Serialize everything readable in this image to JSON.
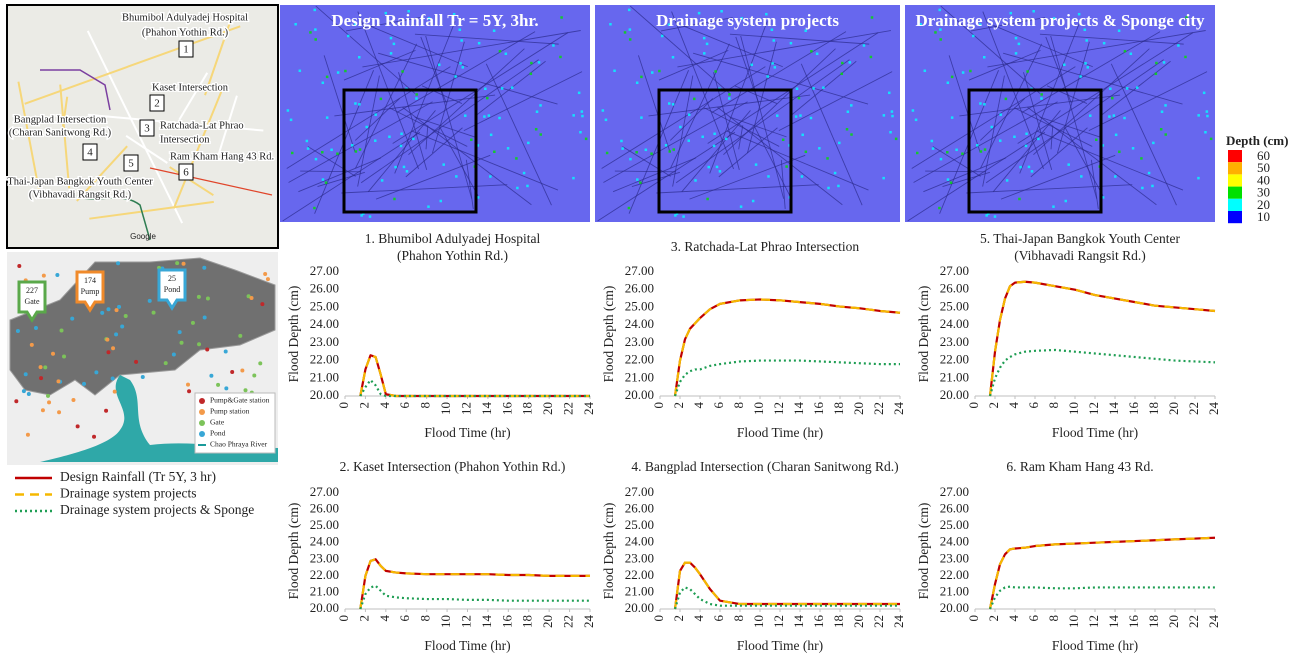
{
  "map": {
    "labels": [
      "Bhumibol Adulyadej Hospital",
      "(Phahon Yothin Rd.)",
      "Kaset Intersection",
      "Ratchada-Lat Phrao",
      "Intersection",
      "Bangplad Intersection",
      "(Charan Sanitwong Rd.)",
      "Ram Kham Hang 43 Rd.",
      "Thai-Japan Bangkok Youth Center",
      "(Vibhavadi Rangsit Rd.)"
    ],
    "markers": [
      "1",
      "2",
      "3",
      "4",
      "5",
      "6"
    ],
    "credit": "Google"
  },
  "facility_map": {
    "callouts": [
      {
        "count": 227,
        "label": "Gate",
        "color": "#5aa84a"
      },
      {
        "count": 174,
        "label": "Pump",
        "color": "#f08a2a"
      },
      {
        "count": 25,
        "label": "Pond",
        "color": "#38a7d6"
      }
    ],
    "legend": [
      {
        "label": "Pump&Gate station",
        "color": "#c0282a",
        "shape": "dot"
      },
      {
        "label": "Pump station",
        "color": "#f39a4a",
        "shape": "dot"
      },
      {
        "label": "Gate",
        "color": "#7cc35a",
        "shape": "dot"
      },
      {
        "label": "Pond",
        "color": "#38a7d6",
        "shape": "dot"
      },
      {
        "label": "Chao Phraya River",
        "color": "#1a9a9a",
        "shape": "line"
      }
    ]
  },
  "panels": [
    {
      "title": "Design Rainfall Tr = 5Y, 3hr."
    },
    {
      "title": "Drainage system projects"
    },
    {
      "title": "Drainage system projects & Sponge city"
    }
  ],
  "depth_legend": {
    "title": "Depth (cm)",
    "ticks": [
      60,
      50,
      40,
      30,
      20,
      10
    ],
    "colors": [
      "#ff0000",
      "#ffb000",
      "#ffff00",
      "#00e000",
      "#00ffff",
      "#0000ff"
    ]
  },
  "series_styles": [
    {
      "name": "Design Rainfall (Tr 5Y, 3 hr)",
      "color": "#c00000",
      "dash": "none"
    },
    {
      "name": "Drainage system projects",
      "color": "#f5b800",
      "dash": "9,6"
    },
    {
      "name": "Drainage system projects & Sponge",
      "color": "#1f9e54",
      "dash": "2,3"
    }
  ],
  "chart_data": [
    {
      "type": "line",
      "title": [
        "1.  Bhumibol Adulyadej Hospital",
        "(Phahon Yothin Rd.)"
      ],
      "x_label": "Flood Time (hr)",
      "y_label": "Flood Depth (cm)",
      "xlim": [
        0,
        24
      ],
      "xticks": [
        0,
        2,
        4,
        6,
        8,
        10,
        12,
        14,
        16,
        18,
        20,
        22,
        24
      ],
      "ylim": [
        20,
        27
      ],
      "yticks": [
        {
          "value": 20,
          "label": "20.00"
        },
        {
          "value": 21,
          "label": "21.00"
        },
        {
          "value": 22,
          "label": "22.00"
        },
        {
          "value": 23,
          "label": "23.00"
        },
        {
          "value": 24,
          "label": "24.00"
        },
        {
          "value": 25,
          "label": "25.00"
        },
        {
          "value": 26,
          "label": "26.00"
        },
        {
          "value": 27,
          "label": "27.00"
        }
      ],
      "x": [
        1.5,
        2,
        2.5,
        3,
        3.5,
        4,
        5,
        6,
        8,
        10,
        12,
        14,
        16,
        18,
        20,
        22,
        24
      ],
      "series": [
        {
          "values": [
            20,
            21.5,
            22.3,
            22.2,
            21.2,
            20.1,
            20,
            20,
            20,
            20,
            20,
            20,
            20,
            20,
            20,
            20,
            20
          ]
        },
        {
          "values": [
            20,
            21.5,
            22.3,
            22.2,
            21.2,
            20.1,
            20,
            20,
            20,
            20,
            20,
            20,
            20,
            20,
            20,
            20,
            20
          ]
        },
        {
          "values": [
            20,
            20.5,
            20.9,
            20.6,
            20.1,
            20,
            20,
            20,
            20,
            20,
            20,
            20,
            20,
            20,
            20,
            20,
            20
          ]
        }
      ]
    },
    {
      "type": "line",
      "title": [
        "2. Kaset Intersection (Phahon Yothin Rd.)"
      ],
      "x_label": "Flood Time (hr)",
      "y_label": "Flood Depth (cm)",
      "xlim": [
        0,
        24
      ],
      "xticks": [
        0,
        2,
        4,
        6,
        8,
        10,
        12,
        14,
        16,
        18,
        20,
        22,
        24
      ],
      "ylim": [
        20,
        27
      ],
      "yticks": [
        {
          "value": 20,
          "label": "20.00"
        },
        {
          "value": 21,
          "label": "21.00"
        },
        {
          "value": 22,
          "label": "22.00"
        },
        {
          "value": 23,
          "label": "23.00"
        },
        {
          "value": 24,
          "label": "24.00"
        },
        {
          "value": 25,
          "label": "25.00"
        },
        {
          "value": 26,
          "label": "26.00"
        },
        {
          "value": 27,
          "label": "27.00"
        }
      ],
      "x": [
        1.5,
        2,
        2.5,
        3,
        3.5,
        4,
        5,
        6,
        8,
        10,
        12,
        14,
        16,
        18,
        20,
        22,
        24
      ],
      "series": [
        {
          "values": [
            20,
            22,
            22.9,
            23,
            22.6,
            22.3,
            22.2,
            22.15,
            22.1,
            22.1,
            22.1,
            22.1,
            22.05,
            22.05,
            22,
            22,
            22
          ]
        },
        {
          "values": [
            20,
            22,
            22.9,
            23,
            22.6,
            22.3,
            22.2,
            22.15,
            22.1,
            22.1,
            22.1,
            22.1,
            22.05,
            22.05,
            22,
            22,
            22
          ]
        },
        {
          "values": [
            20,
            20.9,
            21.3,
            21.4,
            21.1,
            20.8,
            20.7,
            20.65,
            20.6,
            20.6,
            20.55,
            20.55,
            20.5,
            20.5,
            20.5,
            20.5,
            20.5
          ]
        }
      ]
    },
    {
      "type": "line",
      "title": [
        "3. Ratchada-Lat Phrao Intersection"
      ],
      "x_label": "Flood Time (hr)",
      "y_label": "Flood Depth (cm)",
      "xlim": [
        0,
        24
      ],
      "xticks": [
        0,
        2,
        4,
        6,
        8,
        10,
        12,
        14,
        16,
        18,
        20,
        22,
        24
      ],
      "ylim": [
        20,
        27
      ],
      "yticks": [
        {
          "value": 20,
          "label": "20.00"
        },
        {
          "value": 21,
          "label": "21.00"
        },
        {
          "value": 22,
          "label": "22.00"
        },
        {
          "value": 23,
          "label": "23.00"
        },
        {
          "value": 24,
          "label": "24.00"
        },
        {
          "value": 25,
          "label": "25.00"
        },
        {
          "value": 26,
          "label": "26.00"
        },
        {
          "value": 27,
          "label": "27.00"
        }
      ],
      "x": [
        1.5,
        2,
        2.5,
        3,
        3.5,
        4,
        5,
        6,
        8,
        10,
        12,
        14,
        16,
        18,
        20,
        22,
        24
      ],
      "series": [
        {
          "values": [
            20,
            22,
            23.2,
            23.8,
            24.1,
            24.4,
            24.9,
            25.2,
            25.4,
            25.45,
            25.4,
            25.3,
            25.2,
            25.05,
            24.95,
            24.8,
            24.7
          ]
        },
        {
          "values": [
            20,
            22,
            23.2,
            23.8,
            24.1,
            24.4,
            24.9,
            25.2,
            25.4,
            25.45,
            25.4,
            25.3,
            25.2,
            25.05,
            24.95,
            24.8,
            24.7
          ]
        },
        {
          "values": [
            20,
            20.8,
            21.2,
            21.4,
            21.5,
            21.5,
            21.7,
            21.8,
            21.95,
            22,
            22,
            22,
            21.95,
            21.9,
            21.85,
            21.8,
            21.8
          ]
        }
      ]
    },
    {
      "type": "line",
      "title": [
        "4. Bangplad Intersection (Charan Sanitwong Rd.)"
      ],
      "x_label": "Flood Time (hr)",
      "y_label": "Flood Depth (cm)",
      "xlim": [
        0,
        24
      ],
      "xticks": [
        0,
        2,
        4,
        6,
        8,
        10,
        12,
        14,
        16,
        18,
        20,
        22,
        24
      ],
      "ylim": [
        20,
        27
      ],
      "yticks": [
        {
          "value": 20,
          "label": "20.00"
        },
        {
          "value": 21,
          "label": "21.00"
        },
        {
          "value": 22,
          "label": "22.00"
        },
        {
          "value": 23,
          "label": "23.00"
        },
        {
          "value": 24,
          "label": "24.00"
        },
        {
          "value": 25,
          "label": "25.00"
        },
        {
          "value": 26,
          "label": "26.00"
        },
        {
          "value": 27,
          "label": "27.00"
        }
      ],
      "x": [
        1.5,
        2,
        2.5,
        3,
        3.5,
        4,
        5,
        6,
        8,
        10,
        12,
        14,
        16,
        18,
        20,
        22,
        24
      ],
      "series": [
        {
          "values": [
            20,
            22.3,
            22.8,
            22.8,
            22.5,
            22.1,
            21.2,
            20.5,
            20.3,
            20.3,
            20.3,
            20.3,
            20.3,
            20.3,
            20.3,
            20.3,
            20.3
          ]
        },
        {
          "values": [
            20,
            22.3,
            22.8,
            22.8,
            22.5,
            22.1,
            21.2,
            20.5,
            20.3,
            20.3,
            20.3,
            20.3,
            20.3,
            20.3,
            20.3,
            20.3,
            20.3
          ]
        },
        {
          "values": [
            20,
            21,
            21.3,
            21.2,
            20.9,
            20.6,
            20.3,
            20.2,
            20.2,
            20.2,
            20.2,
            20.2,
            20.2,
            20.2,
            20.2,
            20.2,
            20.2
          ]
        }
      ]
    },
    {
      "type": "line",
      "title": [
        "5. Thai-Japan Bangkok Youth Center",
        "(Vibhavadi Rangsit Rd.)"
      ],
      "x_label": "Flood Time (hr)",
      "y_label": "Flood Depth (cm)",
      "xlim": [
        0,
        24
      ],
      "xticks": [
        0,
        2,
        4,
        6,
        8,
        10,
        12,
        14,
        16,
        18,
        20,
        22,
        24
      ],
      "ylim": [
        20,
        27
      ],
      "yticks": [
        {
          "value": 20,
          "label": "20.00"
        },
        {
          "value": 21,
          "label": "21.00"
        },
        {
          "value": 22,
          "label": "22.00"
        },
        {
          "value": 23,
          "label": "23.00"
        },
        {
          "value": 24,
          "label": "24.00"
        },
        {
          "value": 25,
          "label": "25.00"
        },
        {
          "value": 26,
          "label": "26.00"
        },
        {
          "value": 27,
          "label": "27.00"
        }
      ],
      "x": [
        1.5,
        2,
        2.5,
        3,
        3.5,
        4,
        5,
        6,
        8,
        10,
        12,
        14,
        16,
        18,
        20,
        22,
        24
      ],
      "series": [
        {
          "values": [
            20,
            22.5,
            24.3,
            25.5,
            26.2,
            26.4,
            26.45,
            26.4,
            26.2,
            26,
            25.7,
            25.5,
            25.3,
            25.1,
            25,
            24.9,
            24.8
          ]
        },
        {
          "values": [
            20,
            22.5,
            24.3,
            25.5,
            26.2,
            26.4,
            26.45,
            26.4,
            26.2,
            26,
            25.7,
            25.5,
            25.3,
            25.1,
            25,
            24.9,
            24.8
          ]
        },
        {
          "values": [
            20,
            21,
            21.6,
            22,
            22.2,
            22.35,
            22.5,
            22.55,
            22.6,
            22.5,
            22.4,
            22.3,
            22.2,
            22.1,
            22,
            21.95,
            21.9
          ]
        }
      ]
    },
    {
      "type": "line",
      "title": [
        "6. Ram Kham Hang 43 Rd."
      ],
      "x_label": "Flood Time (hr)",
      "y_label": "Flood Depth (cm)",
      "xlim": [
        0,
        24
      ],
      "xticks": [
        0,
        2,
        4,
        6,
        8,
        10,
        12,
        14,
        16,
        18,
        20,
        22,
        24
      ],
      "ylim": [
        20,
        27
      ],
      "yticks": [
        {
          "value": 20,
          "label": "20.00"
        },
        {
          "value": 21,
          "label": "21.00"
        },
        {
          "value": 22,
          "label": "22.00"
        },
        {
          "value": 23,
          "label": "23.00"
        },
        {
          "value": 24,
          "label": "24.00"
        },
        {
          "value": 25,
          "label": "25.00"
        },
        {
          "value": 26,
          "label": "26.00"
        },
        {
          "value": 27,
          "label": "27.00"
        }
      ],
      "x": [
        1.5,
        2,
        2.5,
        3,
        3.5,
        4,
        5,
        6,
        8,
        10,
        12,
        14,
        16,
        18,
        20,
        22,
        24
      ],
      "series": [
        {
          "values": [
            20,
            21.5,
            22.7,
            23.3,
            23.6,
            23.65,
            23.7,
            23.8,
            23.9,
            23.95,
            24,
            24.05,
            24.1,
            24.15,
            24.2,
            24.25,
            24.3
          ]
        },
        {
          "values": [
            20,
            21.5,
            22.7,
            23.3,
            23.6,
            23.65,
            23.7,
            23.8,
            23.9,
            23.95,
            24,
            24.05,
            24.1,
            24.15,
            24.2,
            24.25,
            24.3
          ]
        },
        {
          "values": [
            20,
            20.7,
            21.1,
            21.3,
            21.35,
            21.3,
            21.3,
            21.3,
            21.25,
            21.25,
            21.3,
            21.3,
            21.3,
            21.3,
            21.3,
            21.3,
            21.3
          ]
        }
      ]
    }
  ]
}
